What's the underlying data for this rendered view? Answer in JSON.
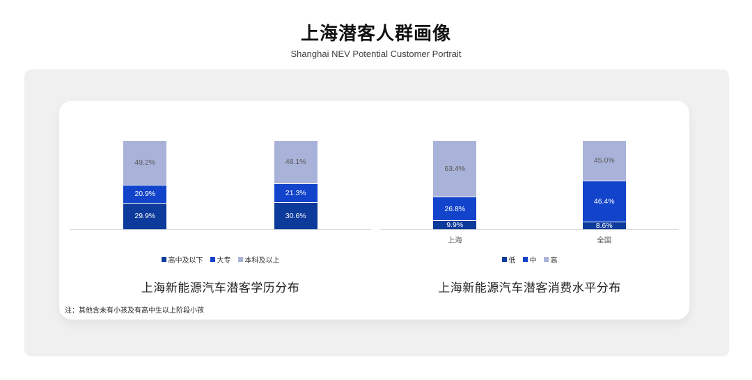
{
  "header": {
    "title": "上海潜客人群画像",
    "subtitle": "Shanghai NEV Potential Customer Portrait"
  },
  "note": "注：其他含未有小孩及有高中生以上阶段小孩",
  "colors": {
    "panel_bg": "#f0f0f1",
    "card_bg": "#ffffff",
    "axis_line": "#d9d9d9",
    "dark_blue": "#0d3b9c",
    "bright_blue": "#1143cb",
    "light_blue": "#a9b2d8",
    "label_on_light": "#595959",
    "label_on_dark": "#ffffff"
  },
  "chart_data": [
    {
      "type": "bar",
      "stacked": true,
      "title": "上海新能源汽车潜客学历分布",
      "categories": [
        "",
        ""
      ],
      "series": [
        {
          "name": "高中及以下",
          "color": "#0d3b9c",
          "label_color": "#ffffff",
          "values": [
            29.9,
            30.6
          ]
        },
        {
          "name": "大专",
          "color": "#1143cb",
          "label_color": "#ffffff",
          "values": [
            20.9,
            21.3
          ]
        },
        {
          "name": "本科及以上",
          "color": "#a9b2d8",
          "label_color": "#595959",
          "values": [
            49.2,
            48.1
          ]
        }
      ],
      "ylim": [
        0,
        100
      ],
      "value_suffix": "%",
      "legend_position": "bottom",
      "grid": false
    },
    {
      "type": "bar",
      "stacked": true,
      "title": "上海新能源汽车潜客消费水平分布",
      "categories": [
        "上海",
        "全国"
      ],
      "series": [
        {
          "name": "低",
          "color": "#0d3b9c",
          "label_color": "#ffffff",
          "values": [
            9.9,
            8.6
          ]
        },
        {
          "name": "中",
          "color": "#1143cb",
          "label_color": "#ffffff",
          "values": [
            26.8,
            46.4
          ]
        },
        {
          "name": "高",
          "color": "#a9b2d8",
          "label_color": "#595959",
          "values": [
            63.4,
            45.0
          ]
        }
      ],
      "ylim": [
        0,
        100
      ],
      "value_suffix": "%",
      "legend_position": "bottom",
      "grid": false
    }
  ]
}
